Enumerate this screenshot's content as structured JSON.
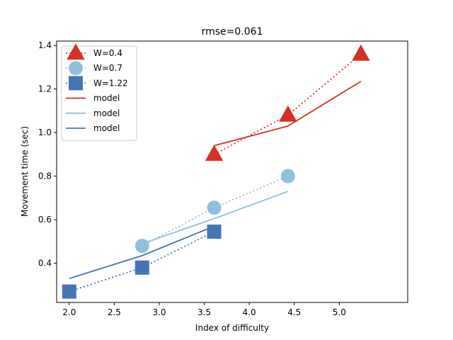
{
  "chart_data": {
    "type": "line",
    "title": "rmse=0.061",
    "xlabel": "Index of difficulty",
    "ylabel": "Movement time (sec)",
    "xlim": [
      1.86,
      5.76
    ],
    "ylim": [
      0.22,
      1.42
    ],
    "xticks": [
      2.0,
      2.5,
      3.0,
      3.5,
      4.0,
      4.5,
      5.0
    ],
    "yticks": [
      0.4,
      0.6,
      0.8,
      1.0,
      1.2,
      1.4
    ],
    "grid": false,
    "legend_position": "upper-left",
    "series": [
      {
        "name": "W=0.4",
        "kind": "measured",
        "marker": "triangle",
        "line": "dotted",
        "color": "#d73027",
        "x": [
          3.61,
          4.43,
          5.24
        ],
        "y": [
          0.9,
          1.08,
          1.36
        ]
      },
      {
        "name": "W=0.7",
        "kind": "measured",
        "marker": "circle",
        "line": "dotted",
        "color": "#91bfdb",
        "x": [
          2.81,
          3.61,
          4.43
        ],
        "y": [
          0.48,
          0.655,
          0.8
        ]
      },
      {
        "name": "W=1.22",
        "kind": "measured",
        "marker": "square",
        "line": "dotted",
        "color": "#4575b4",
        "x": [
          2.0,
          2.81,
          3.61
        ],
        "y": [
          0.27,
          0.38,
          0.545
        ]
      },
      {
        "name": "model",
        "kind": "model",
        "line": "solid",
        "color": "#d73027",
        "x": [
          3.61,
          4.43,
          5.24
        ],
        "y": [
          0.94,
          1.03,
          1.235
        ]
      },
      {
        "name": "model",
        "kind": "model",
        "line": "solid",
        "color": "#91bfdb",
        "x": [
          2.81,
          3.61,
          4.43
        ],
        "y": [
          0.49,
          0.605,
          0.73
        ]
      },
      {
        "name": "model",
        "kind": "model",
        "line": "solid",
        "color": "#4575b4",
        "x": [
          2.0,
          2.81,
          3.61
        ],
        "y": [
          0.33,
          0.435,
          0.57
        ]
      }
    ]
  }
}
